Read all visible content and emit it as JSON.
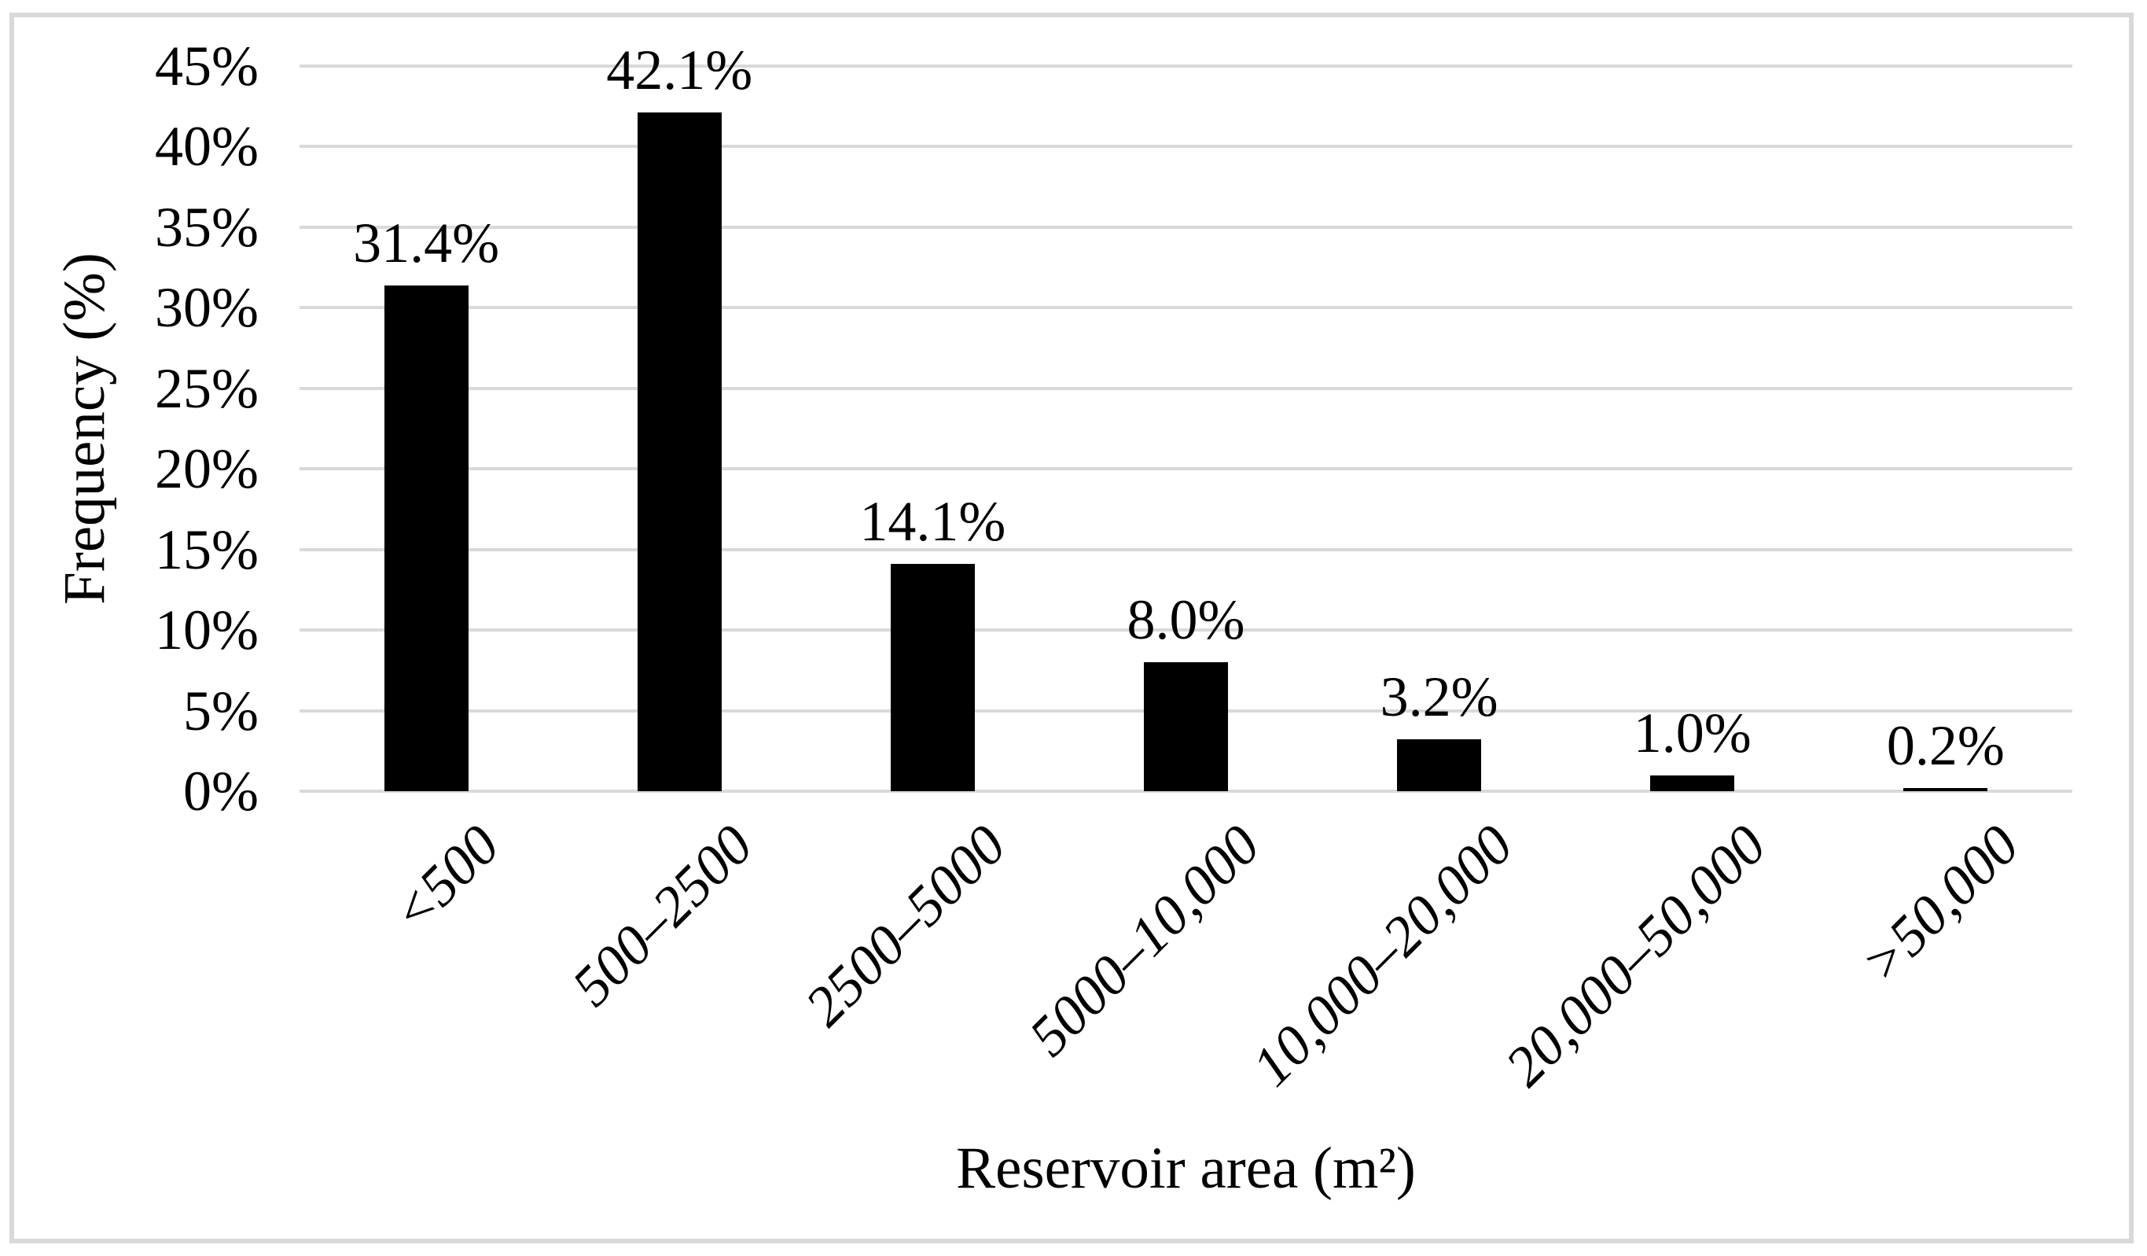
{
  "chart_data": {
    "type": "bar",
    "title": "",
    "xlabel": "Reservoir area (m²)",
    "ylabel": "Frequency (%)",
    "categories": [
      "<500",
      "500–2500",
      "2500–5000",
      "5000–10,000",
      "10,000–20,000",
      "20,000–50,000",
      ">50,000"
    ],
    "values": [
      31.4,
      42.1,
      14.1,
      8.0,
      3.2,
      1.0,
      0.2
    ],
    "value_labels": [
      "31.4%",
      "42.1%",
      "14.1%",
      "8.0%",
      "3.2%",
      "1.0%",
      "0.2%"
    ],
    "ylim": [
      0,
      45
    ],
    "ytick_step": 5,
    "yticks": [
      "0%",
      "5%",
      "10%",
      "15%",
      "20%",
      "25%",
      "30%",
      "35%",
      "40%",
      "45%"
    ],
    "grid": "horizontal",
    "legend_position": "none",
    "bar_color": "#000000",
    "gridline_color": "#d9d9d9",
    "frame_border_color": "#d9d9d9",
    "background_color": "#ffffff",
    "x_tick_style": "italic, rotated 45 degrees"
  }
}
